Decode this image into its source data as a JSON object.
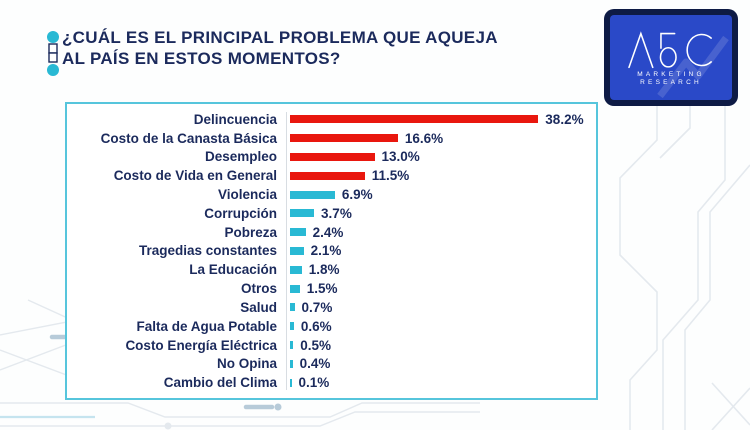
{
  "theme": {
    "navy": "#1B2A5C",
    "red": "#E9170E",
    "cyan": "#29B9D4",
    "border-cyan": "#56C5DC",
    "logo-blue": "#2A49C8",
    "logo-frame": "#0E1B45",
    "circuit": "#E4E9EE",
    "circuit-accent": "#B7CBD9",
    "lightblue-line": "#C5E4EF",
    "axis": "#D8DDE2"
  },
  "header": {
    "title_line1": "¿CUÁL ES EL PRINCIPAL PROBLEMA QUE AQUEJA",
    "title_line2": "AL PAÍS EN ESTOS MOMENTOS?",
    "icon": "connector-dots-icon"
  },
  "logo": {
    "brand": "ABC",
    "word1": "MARKETING",
    "word2": "RESEARCH"
  },
  "chart_data": {
    "type": "bar",
    "orientation": "horizontal",
    "title": "¿Cuál es el principal problema que aqueja al país en estos momentos?",
    "xlabel": "",
    "ylabel": "",
    "xlim": [
      0,
      40
    ],
    "grid": false,
    "legend": false,
    "categories": [
      "Delincuencia",
      "Costo de la Canasta Básica",
      "Desempleo",
      "Costo de Vida en General",
      "Violencia",
      "Corrupción",
      "Pobreza",
      "Tragedias constantes",
      "La Educación",
      "Otros",
      "Salud",
      "Falta de Agua Potable",
      "Costo Energía Eléctrica",
      "No Opina",
      "Cambio del Clima"
    ],
    "values": [
      38.2,
      16.6,
      13.0,
      11.5,
      6.9,
      3.7,
      2.4,
      2.1,
      1.8,
      1.5,
      0.7,
      0.6,
      0.5,
      0.4,
      0.1
    ],
    "value_labels": [
      "38.2%",
      "16.6%",
      "13.0%",
      "11.5%",
      "6.9%",
      "3.7%",
      "2.4%",
      "2.1%",
      "1.8%",
      "1.5%",
      "0.7%",
      "0.6%",
      "0.5%",
      "0.4%",
      "0.1%"
    ],
    "colors": [
      "#E9170E",
      "#E9170E",
      "#E9170E",
      "#E9170E",
      "#29B9D4",
      "#29B9D4",
      "#29B9D4",
      "#29B9D4",
      "#29B9D4",
      "#29B9D4",
      "#29B9D4",
      "#29B9D4",
      "#29B9D4",
      "#29B9D4",
      "#29B9D4"
    ]
  }
}
